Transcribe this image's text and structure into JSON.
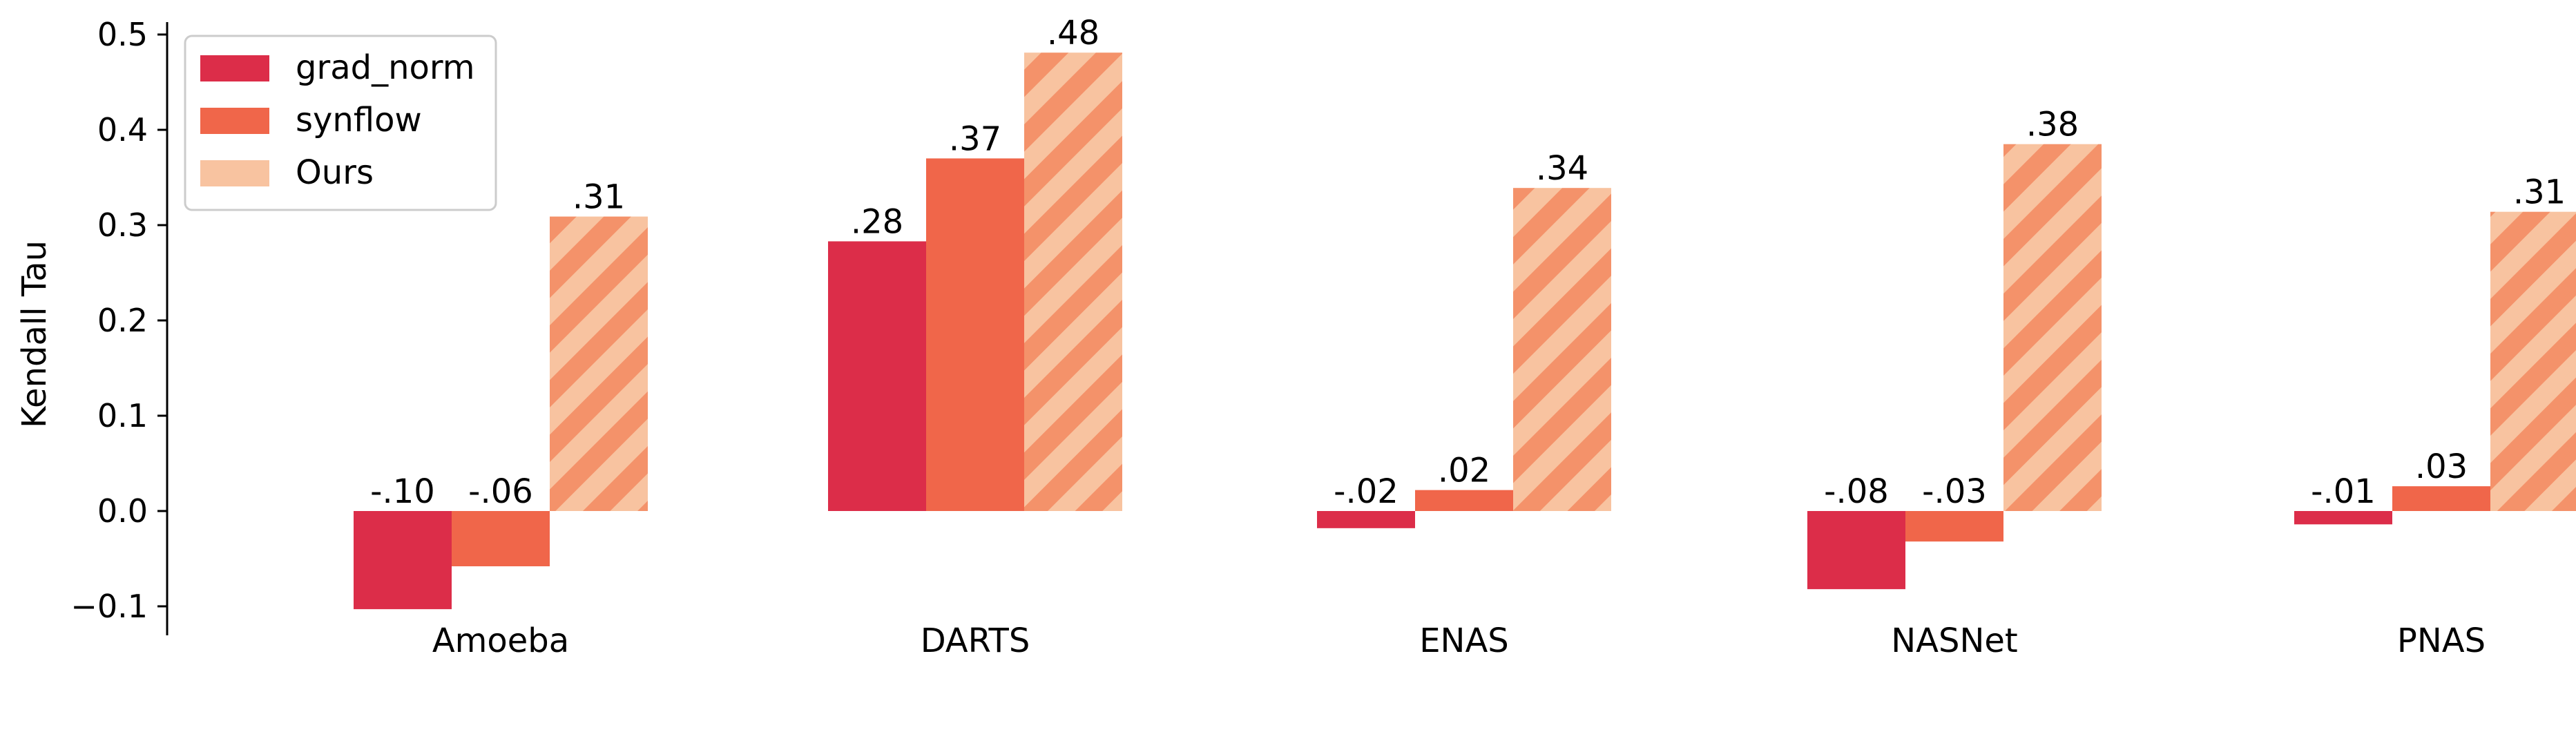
{
  "chart_data": {
    "type": "bar",
    "title": "",
    "xlabel": "",
    "ylabel": "Kendall Tau",
    "ylim": [
      -0.14,
      0.52
    ],
    "yticks": [
      -0.1,
      0.0,
      0.1,
      0.2,
      0.3,
      0.4,
      0.5
    ],
    "ytick_labels": [
      "−0.1",
      "0.0",
      "0.1",
      "0.2",
      "0.3",
      "0.4",
      "0.5"
    ],
    "categories": [
      "Amoeba",
      "DARTS",
      "ENAS",
      "NASNet",
      "PNAS"
    ],
    "series": [
      {
        "name": "grad_norm",
        "color": "#DC2D49",
        "pattern": "solid",
        "values": [
          -0.103,
          0.283,
          -0.018,
          -0.082,
          -0.014
        ],
        "labels": [
          "-.10",
          ".28",
          "-.02",
          "-.08",
          "-.01"
        ]
      },
      {
        "name": "synflow",
        "color": "#F0664A",
        "pattern": "solid",
        "values": [
          -0.058,
          0.37,
          0.022,
          -0.032,
          0.026
        ],
        "labels": [
          "-.06",
          ".37",
          ".02",
          "-.03",
          ".03"
        ]
      },
      {
        "name": "Ours",
        "color": "#F8C3A0",
        "hatch_color": "#F4926A",
        "pattern": "hatched",
        "values": [
          0.309,
          0.481,
          0.339,
          0.385,
          0.314
        ],
        "labels": [
          ".31",
          ".48",
          ".34",
          ".38",
          ".31"
        ]
      }
    ],
    "legend": {
      "placement": "top-left"
    },
    "grid": false
  }
}
